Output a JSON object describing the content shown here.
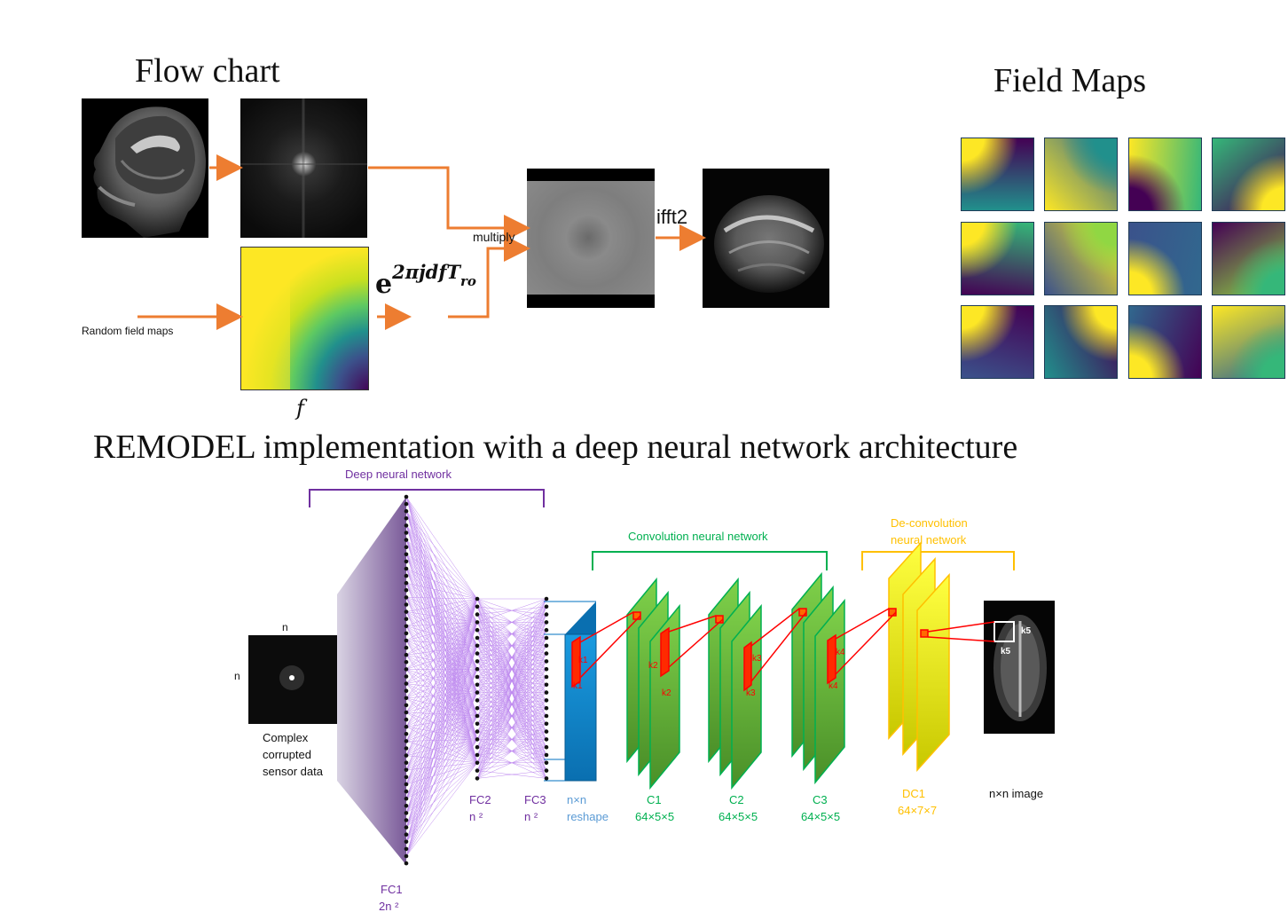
{
  "flow": {
    "title": "Flow chart",
    "multiply_label": "multiply",
    "ifft_label": "ifft2",
    "random_label": "Random field maps",
    "f_label": "f",
    "exp_base": "e",
    "exp_power": "2πjdfT",
    "exp_sub": "ro"
  },
  "field_maps": {
    "title": "Field Maps",
    "tiles": [
      {
        "from": "#21908c",
        "to": "#440154",
        "accent": "#fde725"
      },
      {
        "from": "#fde725",
        "to": "#31688e",
        "accent": "#21908c"
      },
      {
        "from": "#fde725",
        "to": "#35b779",
        "accent": "#440154"
      },
      {
        "from": "#35b779",
        "to": "#440154",
        "accent": "#fde725"
      },
      {
        "from": "#35b779",
        "to": "#440154",
        "accent": "#fde725"
      },
      {
        "from": "#fde725",
        "to": "#3b528b",
        "accent": "#90d743"
      },
      {
        "from": "#31688e",
        "to": "#3b528b",
        "accent": "#fde725"
      },
      {
        "from": "#90d743",
        "to": "#440154",
        "accent": "#35b779"
      },
      {
        "from": "#3b528b",
        "to": "#440154",
        "accent": "#fde725"
      },
      {
        "from": "#21908c",
        "to": "#440154",
        "accent": "#fde725"
      },
      {
        "from": "#31688e",
        "to": "#440154",
        "accent": "#fde725"
      },
      {
        "from": "#fde725",
        "to": "#31688e",
        "accent": "#35b779"
      }
    ]
  },
  "architecture": {
    "title": "REMODEL implementation with a deep neural network architecture",
    "dnn_label": "Deep neural network",
    "cnn_label": "Convolution neural network",
    "deconv_label_1": "De-convolution",
    "deconv_label_2": "neural network",
    "input_n_top": "n",
    "input_n_left": "n",
    "input_caption_1": "Complex",
    "input_caption_2": "corrupted",
    "input_caption_3": "sensor data",
    "fc1_name": "FC1",
    "fc1_size": "2n ²",
    "fc2_name": "FC2",
    "fc2_size": "n ²",
    "fc3_name": "FC3",
    "fc3_size": "n ²",
    "reshape_1": "n×n",
    "reshape_2": "reshape",
    "c1_name": "C1",
    "c1_size": "64×5×5",
    "c2_name": "C2",
    "c2_size": "64×5×5",
    "c3_name": "C3",
    "c3_size": "64×5×5",
    "dc1_name": "DC1",
    "dc1_size": "64×7×7",
    "output_label": "n×n image",
    "k1": "k1",
    "k2": "k2",
    "k3": "k3",
    "k4": "k4",
    "k5": "k5",
    "colors": {
      "purple": "#7030a0",
      "green": "#00b050",
      "yellow": "#ffc000",
      "blue": "#0070c0",
      "orange": "#ed7d31",
      "red": "#ff0000"
    }
  }
}
